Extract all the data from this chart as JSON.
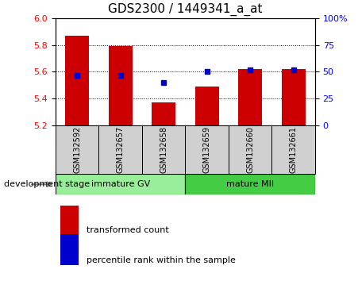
{
  "title": "GDS2300 / 1449341_a_at",
  "samples": [
    "GSM132592",
    "GSM132657",
    "GSM132658",
    "GSM132659",
    "GSM132660",
    "GSM132661"
  ],
  "bar_values": [
    5.87,
    5.79,
    5.37,
    5.49,
    5.62,
    5.62
  ],
  "percentile_values": [
    5.57,
    5.57,
    5.52,
    5.6,
    5.615,
    5.615
  ],
  "bar_color": "#cc0000",
  "percentile_color": "#0000cc",
  "ylim": [
    5.2,
    6.0
  ],
  "yticks_left": [
    5.2,
    5.4,
    5.6,
    5.8,
    6.0
  ],
  "yticks_right": [
    0,
    25,
    50,
    75,
    100
  ],
  "ytick_labels_right": [
    "0",
    "25",
    "50",
    "75",
    "100%"
  ],
  "bar_bottom": 5.2,
  "group1_label": "immature GV",
  "group2_label": "mature MII",
  "group_color1": "#99ee99",
  "group_color2": "#44cc44",
  "sample_box_color": "#d0d0d0",
  "dev_stage_label": "development stage",
  "legend_bar_label": "transformed count",
  "legend_pct_label": "percentile rank within the sample",
  "title_fontsize": 11,
  "tick_label_fontsize": 8,
  "sample_label_fontsize": 7,
  "group_label_fontsize": 8,
  "legend_fontsize": 8,
  "bar_width": 0.55
}
